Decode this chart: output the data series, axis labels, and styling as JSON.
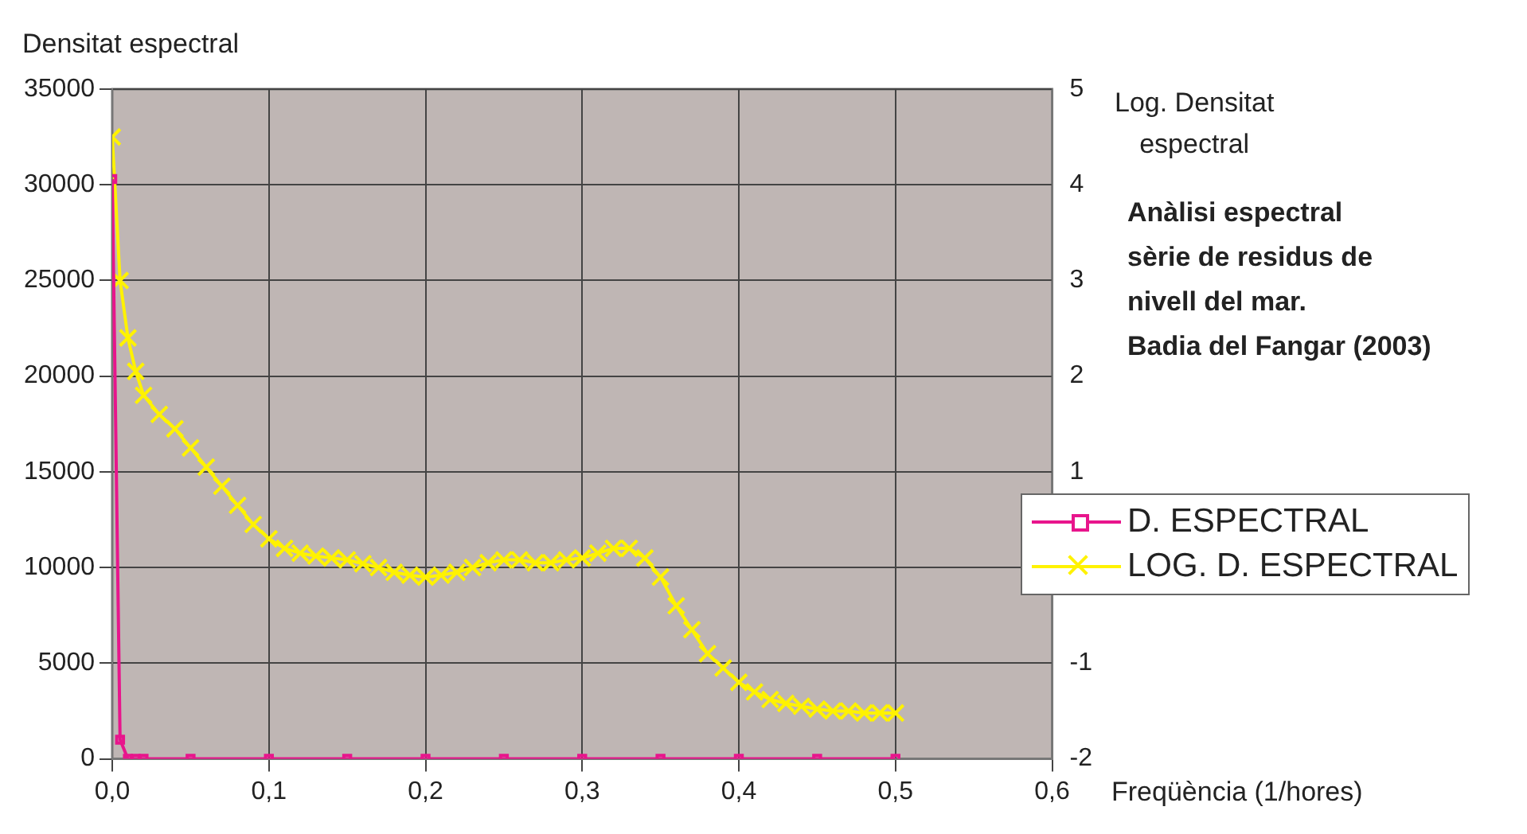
{
  "chart_data": {
    "type": "line",
    "title": "Anàlisi espectral\nsèrie de residus de\nnivell del mar.\nBadia del Fangar (2003)",
    "ylabel": "Densitat espectral",
    "y2label": "Log. Densitat\nespectral",
    "xlabel": "Freqüència (1/hores)",
    "xlim": [
      0,
      0.6
    ],
    "xticks": [
      {
        "value": 0,
        "label": "0,0"
      },
      {
        "value": 0.1,
        "label": "0,1"
      },
      {
        "value": 0.2,
        "label": "0,2"
      },
      {
        "value": 0.3,
        "label": "0,3"
      },
      {
        "value": 0.4,
        "label": "0,4"
      },
      {
        "value": 0.5,
        "label": "0,5"
      },
      {
        "value": 0.6,
        "label": "0,6"
      }
    ],
    "ylim": [
      0,
      35000
    ],
    "yticks": [
      0,
      5000,
      10000,
      15000,
      20000,
      25000,
      30000,
      35000
    ],
    "y2lim": [
      -2,
      5
    ],
    "y2ticks": [
      -2,
      -1,
      1,
      2,
      3,
      4,
      5
    ],
    "grid": true,
    "legend": "right",
    "series": [
      {
        "name": "D. ESPECTRAL",
        "color": "#e8158c",
        "marker": "square",
        "x": [
          0,
          0.005,
          0.01,
          0.015,
          0.02,
          0.05,
          0.1,
          0.15,
          0.2,
          0.25,
          0.3,
          0.35,
          0.4,
          0.45,
          0.5
        ],
        "values": [
          30300,
          1000,
          0,
          0,
          0,
          0,
          0,
          0,
          0,
          0,
          0,
          0,
          0,
          0,
          0
        ]
      },
      {
        "name": "LOG. D. ESPECTRAL",
        "color": "#fff200",
        "marker": "cross",
        "axis": "y2",
        "x": [
          0,
          0.005,
          0.01,
          0.015,
          0.02,
          0.03,
          0.04,
          0.05,
          0.06,
          0.07,
          0.08,
          0.09,
          0.1,
          0.11,
          0.12,
          0.13,
          0.14,
          0.15,
          0.16,
          0.17,
          0.18,
          0.19,
          0.2,
          0.21,
          0.22,
          0.23,
          0.24,
          0.25,
          0.26,
          0.27,
          0.28,
          0.29,
          0.3,
          0.31,
          0.32,
          0.33,
          0.34,
          0.35,
          0.36,
          0.37,
          0.38,
          0.39,
          0.4,
          0.41,
          0.42,
          0.43,
          0.44,
          0.45,
          0.46,
          0.47,
          0.48,
          0.49,
          0.5
        ],
        "values": [
          4.5,
          3.0,
          2.4,
          2.05,
          1.8,
          1.6,
          1.45,
          1.25,
          1.05,
          0.85,
          0.65,
          0.45,
          0.3,
          0.2,
          0.15,
          0.12,
          0.1,
          0.08,
          0.04,
          0.0,
          -0.05,
          -0.08,
          -0.1,
          -0.08,
          -0.05,
          0.0,
          0.05,
          0.08,
          0.08,
          0.05,
          0.05,
          0.08,
          0.1,
          0.15,
          0.2,
          0.2,
          0.1,
          -0.1,
          -0.4,
          -0.65,
          -0.9,
          -1.05,
          -1.2,
          -1.3,
          -1.38,
          -1.42,
          -1.45,
          -1.48,
          -1.5,
          -1.5,
          -1.52,
          -1.52,
          -1.52
        ]
      }
    ]
  }
}
